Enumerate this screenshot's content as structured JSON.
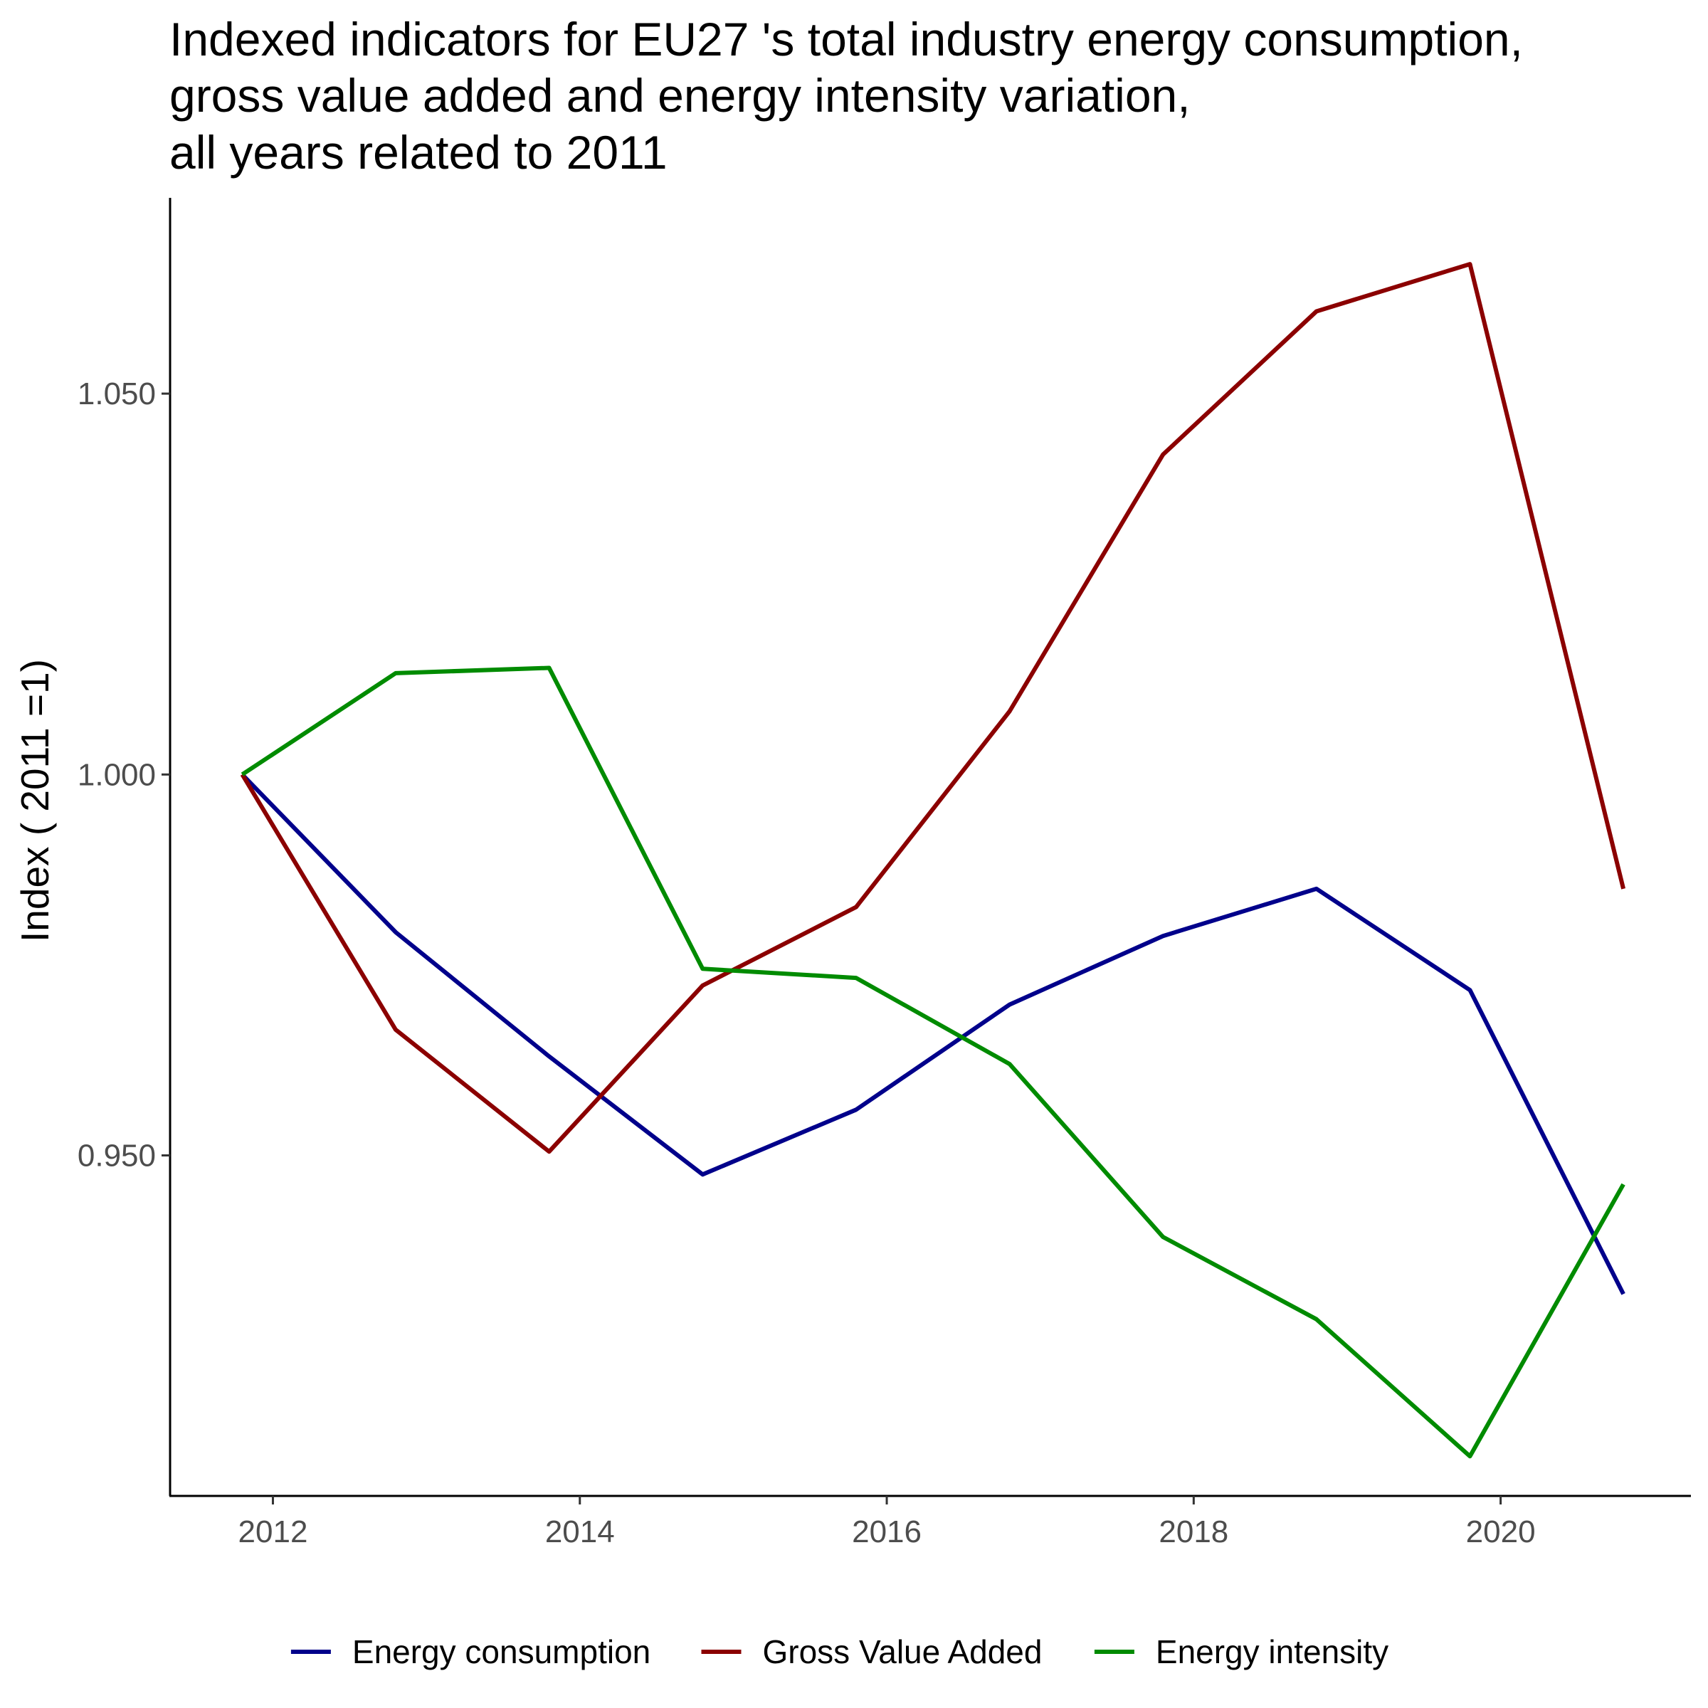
{
  "chart_data": {
    "type": "line",
    "title_lines": [
      "Indexed indicators for EU27 's total industry energy consumption,",
      "gross value added and energy intensity variation,",
      "all years related to 2011"
    ],
    "xlabel": "",
    "ylabel": "Index ( 2011 =1)",
    "x": [
      2011.8,
      2012.8,
      2013.8,
      2014.8,
      2015.8,
      2016.8,
      2017.8,
      2018.8,
      2019.8,
      2020.8
    ],
    "xlim": [
      2011.33,
      2021.24
    ],
    "ylim": [
      0.9053,
      1.0757
    ],
    "x_ticks": [
      2012,
      2014,
      2016,
      2018,
      2020
    ],
    "x_tick_labels": [
      "2012",
      "2014",
      "2016",
      "2018",
      "2020"
    ],
    "y_ticks": [
      0.95,
      1.0,
      1.05
    ],
    "y_tick_labels": [
      "0.950",
      "1.000",
      "1.050"
    ],
    "grid": false,
    "legend_position": "bottom",
    "series": [
      {
        "name": "Energy consumption",
        "color": "#00008B",
        "values": [
          1.0,
          0.9793,
          0.963,
          0.9475,
          0.956,
          0.9698,
          0.9788,
          0.985,
          0.9717,
          0.9318
        ]
      },
      {
        "name": "Gross Value Added",
        "color": "#8B0000",
        "values": [
          1.0,
          0.9665,
          0.9505,
          0.9723,
          0.9826,
          1.0083,
          1.042,
          1.0608,
          1.067,
          0.985
        ]
      },
      {
        "name": "Energy intensity",
        "color": "#008B00",
        "values": [
          1.0,
          1.0133,
          1.014,
          0.9745,
          0.9733,
          0.962,
          0.9393,
          0.9285,
          0.9105,
          0.9462
        ]
      }
    ]
  }
}
